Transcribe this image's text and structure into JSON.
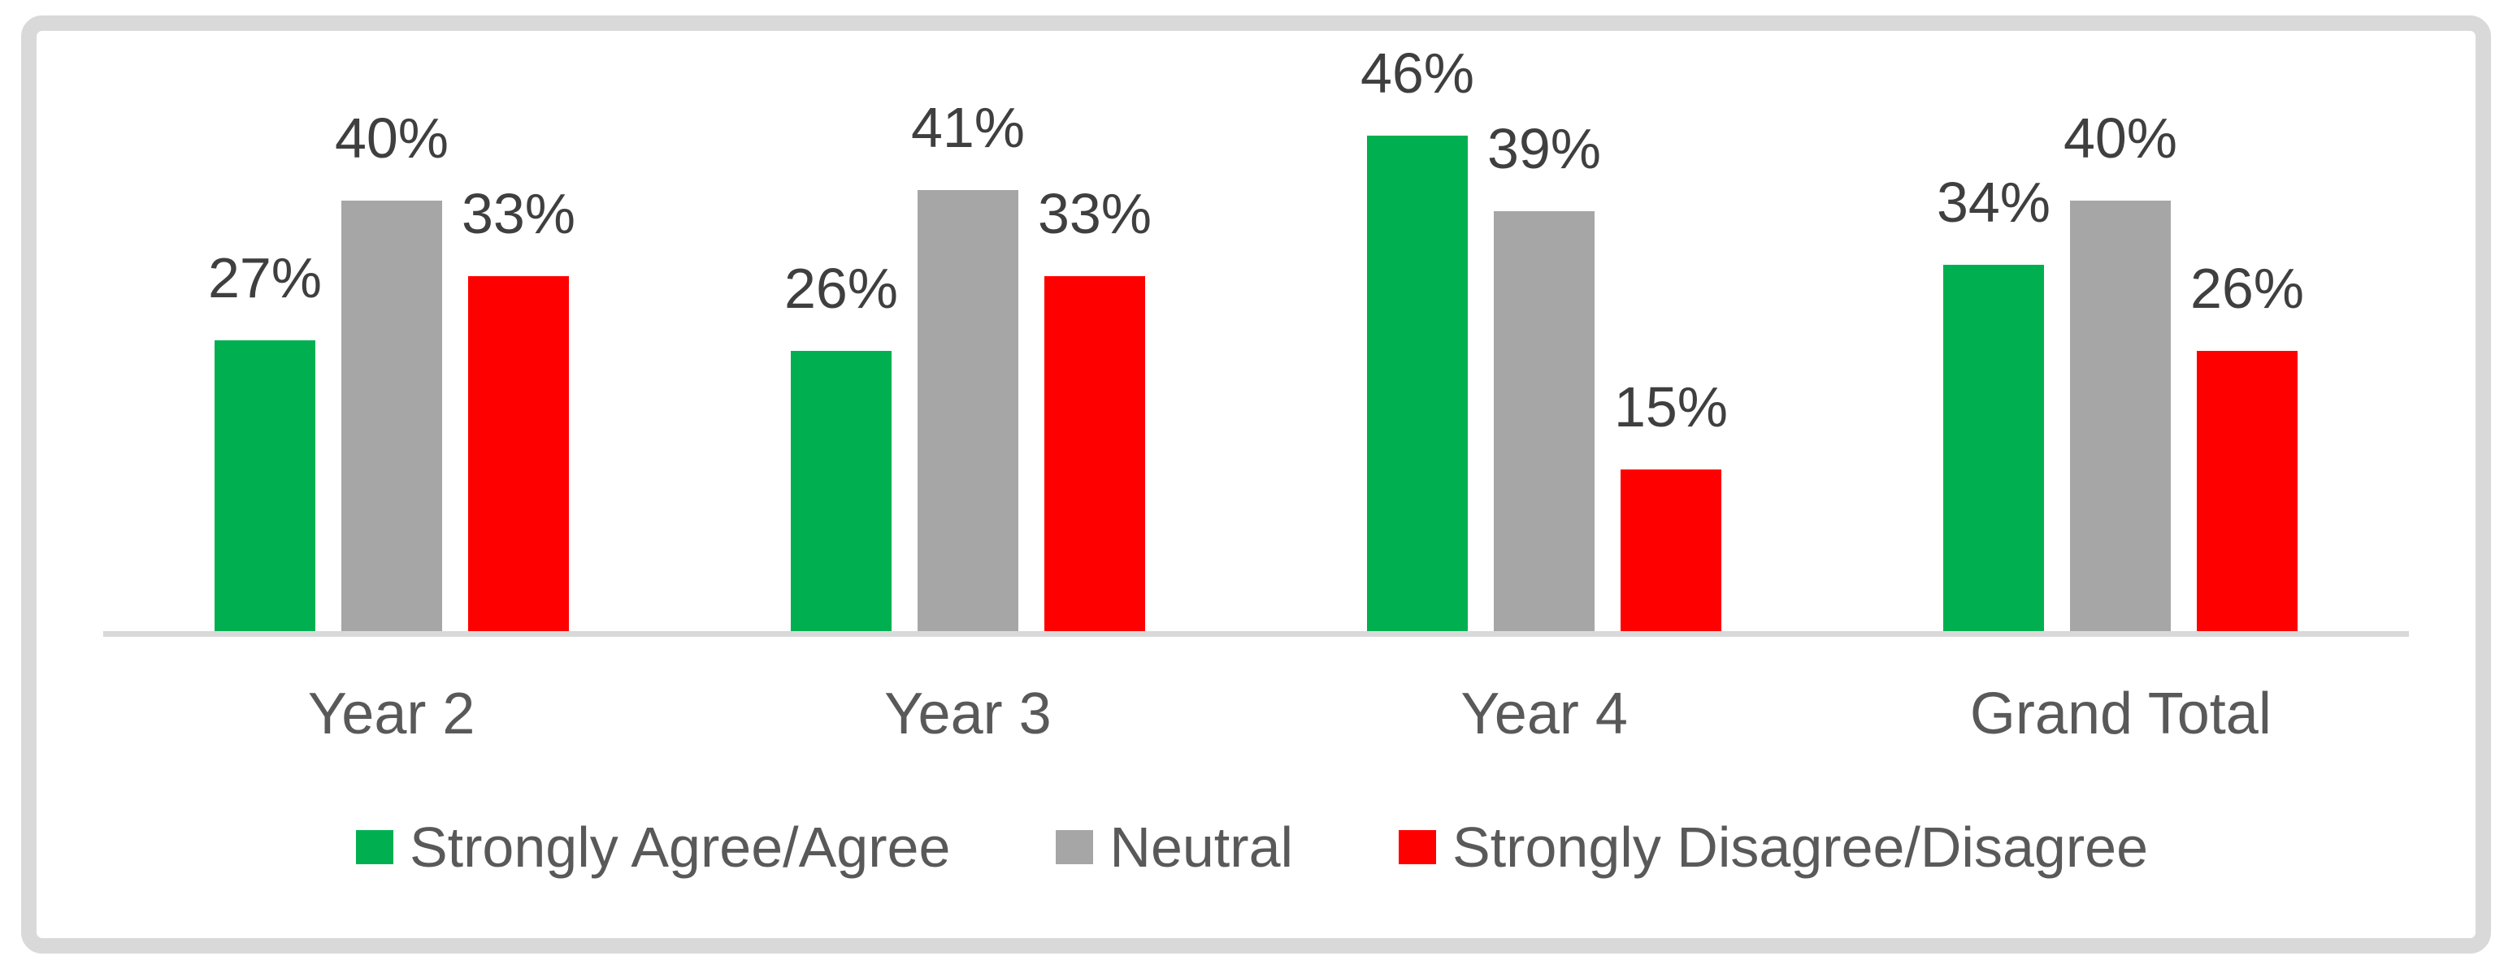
{
  "chart_data": {
    "type": "bar",
    "title": "",
    "categories": [
      "Year 2",
      "Year 3",
      "Year 4",
      "Grand Total"
    ],
    "series": [
      {
        "name": "Strongly Agree/Agree",
        "color": "#00B050",
        "values": [
          27,
          26,
          46,
          34
        ],
        "labels": [
          "27%",
          "26%",
          "46%",
          "34%"
        ]
      },
      {
        "name": "Neutral",
        "color": "#A6A6A6",
        "values": [
          40,
          41,
          39,
          40
        ],
        "labels": [
          "40%",
          "41%",
          "39%",
          "40%"
        ]
      },
      {
        "name": "Strongly Disagree/Disagree",
        "color": "#FF0000",
        "values": [
          33,
          33,
          15,
          26
        ],
        "labels": [
          "33%",
          "33%",
          "15%",
          "26%"
        ]
      }
    ],
    "value_suffix": "%",
    "ylim": [
      0,
      50
    ],
    "grid": false,
    "y_axis_visible": false,
    "data_labels": true,
    "legend_position": "bottom"
  },
  "colors": {
    "axis_line": "#D9D9D9",
    "frame_border": "#D9D9D9",
    "data_label_text": "#3F3F3F",
    "category_label_text": "#595959",
    "legend_text": "#595959",
    "background": "#FFFFFF"
  }
}
